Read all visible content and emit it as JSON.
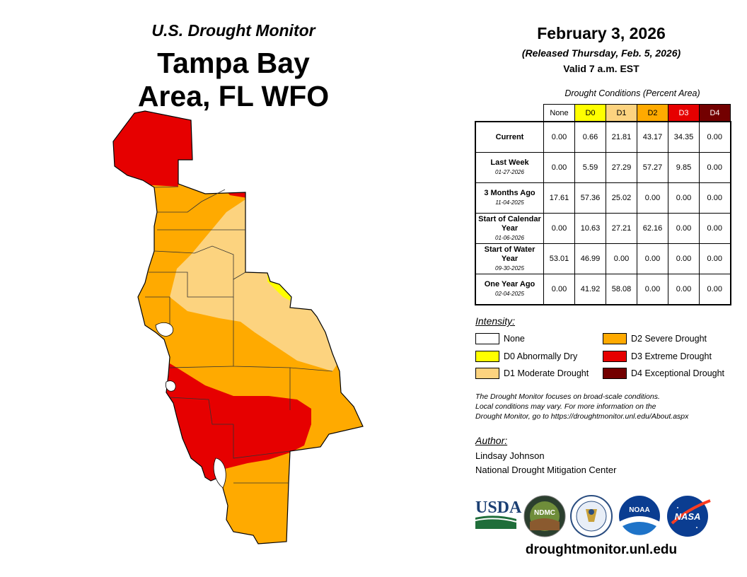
{
  "header": {
    "subtitle": "U.S. Drought Monitor",
    "title_line1": "Tampa Bay",
    "title_line2": "Area, FL WFO"
  },
  "date_block": {
    "date": "February 3, 2026",
    "released": "(Released Thursday, Feb. 5, 2026)",
    "valid": "Valid 7 a.m. EST"
  },
  "table": {
    "caption": "Drought Conditions (Percent Area)",
    "columns": [
      "None",
      "D0",
      "D1",
      "D2",
      "D3",
      "D4"
    ],
    "rows": [
      {
        "label": "Current",
        "date": "",
        "values": [
          "0.00",
          "0.66",
          "21.81",
          "43.17",
          "34.35",
          "0.00"
        ]
      },
      {
        "label": "Last Week",
        "date": "01-27-2026",
        "values": [
          "0.00",
          "5.59",
          "27.29",
          "57.27",
          "9.85",
          "0.00"
        ]
      },
      {
        "label": "3 Months Ago",
        "date": "11-04-2025",
        "values": [
          "17.61",
          "57.36",
          "25.02",
          "0.00",
          "0.00",
          "0.00"
        ]
      },
      {
        "label": "Start of Calendar Year",
        "date": "01-06-2026",
        "values": [
          "0.00",
          "10.63",
          "27.21",
          "62.16",
          "0.00",
          "0.00"
        ]
      },
      {
        "label": "Start of Water Year",
        "date": "09-30-2025",
        "values": [
          "53.01",
          "46.99",
          "0.00",
          "0.00",
          "0.00",
          "0.00"
        ]
      },
      {
        "label": "One Year Ago",
        "date": "02-04-2025",
        "values": [
          "0.00",
          "41.92",
          "58.08",
          "0.00",
          "0.00",
          "0.00"
        ]
      }
    ]
  },
  "legend": {
    "title": "Intensity:",
    "items": [
      {
        "label": "None",
        "color": "#ffffff"
      },
      {
        "label": "D0 Abnormally Dry",
        "color": "#ffff00"
      },
      {
        "label": "D1 Moderate Drought",
        "color": "#fcd37f"
      },
      {
        "label": "D2 Severe Drought",
        "color": "#ffaa00"
      },
      {
        "label": "D3 Extreme Drought",
        "color": "#e60000"
      },
      {
        "label": "D4 Exceptional Drought",
        "color": "#730000"
      }
    ]
  },
  "note": {
    "line1": "The Drought Monitor focuses on broad-scale conditions.",
    "line2": "Local conditions may vary. For more information on the",
    "line3": "Drought Monitor, go to https://droughtmonitor.unl.edu/About.aspx"
  },
  "author": {
    "title": "Author:",
    "name": "Lindsay Johnson",
    "org": "National Drought Mitigation Center"
  },
  "logos": {
    "usda": "USDA",
    "ndmc": "NDMC",
    "noaa": "NOAA",
    "nasa": "NASA"
  },
  "footer": {
    "url": "droughtmonitor.unl.edu"
  },
  "colors": {
    "d0": "#ffff00",
    "d1": "#fcd37f",
    "d2": "#ffaa00",
    "d3": "#e60000",
    "d4": "#730000"
  }
}
